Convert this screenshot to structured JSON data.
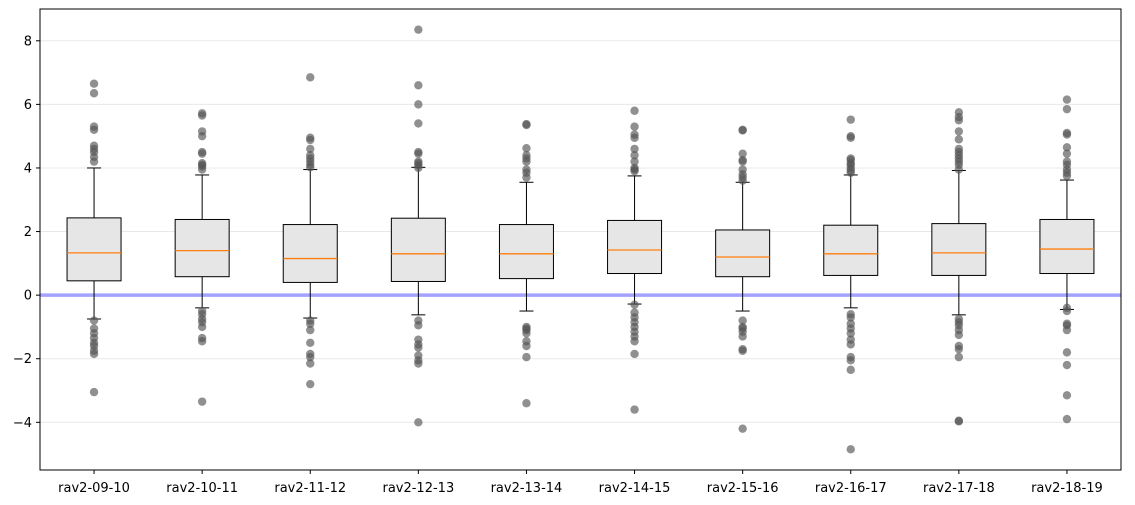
{
  "chart_data": {
    "type": "boxplot",
    "title": "",
    "xlabel": "",
    "ylabel": "",
    "ylim": [
      -5.5,
      9.0
    ],
    "yticks": [
      -4,
      -2,
      0,
      2,
      4,
      6,
      8
    ],
    "ytick_labels": [
      "−4",
      "−2",
      "0",
      "2",
      "4",
      "6",
      "8"
    ],
    "grid": "horizontal",
    "reference_line": {
      "y": 0,
      "color": "#a3a3ff"
    },
    "colors": {
      "box_fill": "#e6e6e6",
      "median": "#ff7f0e",
      "outlier": "#555555",
      "edge": "#000000"
    },
    "categories": [
      "rav2-09-10",
      "rav2-10-11",
      "rav2-11-12",
      "rav2-12-13",
      "rav2-13-14",
      "rav2-14-15",
      "rav2-15-16",
      "rav2-16-17",
      "rav2-17-18",
      "rav2-18-19"
    ],
    "boxes": [
      {
        "whisker_low": -0.75,
        "q1": 0.45,
        "median": 1.33,
        "q3": 2.43,
        "whisker_high": 4.0,
        "outliers": [
          6.65,
          6.35,
          5.3,
          5.2,
          4.7,
          4.6,
          4.5,
          4.35,
          4.2,
          -0.8,
          -1.05,
          -1.2,
          -1.35,
          -1.5,
          -1.6,
          -1.75,
          -1.85,
          -3.05
        ]
      },
      {
        "whisker_low": -0.4,
        "q1": 0.58,
        "median": 1.4,
        "q3": 2.38,
        "whisker_high": 3.78,
        "outliers": [
          5.72,
          5.65,
          5.15,
          5.0,
          4.5,
          4.45,
          4.15,
          4.1,
          4.05,
          3.95,
          -0.5,
          -0.6,
          -0.75,
          -0.85,
          -1.0,
          -1.35,
          -1.45,
          -3.35
        ]
      },
      {
        "whisker_low": -0.72,
        "q1": 0.4,
        "median": 1.15,
        "q3": 2.22,
        "whisker_high": 3.95,
        "outliers": [
          6.85,
          4.95,
          4.88,
          4.6,
          4.4,
          4.3,
          4.2,
          4.1,
          4.02,
          -0.8,
          -0.9,
          -1.1,
          -1.5,
          -1.85,
          -1.95,
          -2.15,
          -2.8
        ]
      },
      {
        "whisker_low": -0.62,
        "q1": 0.43,
        "median": 1.3,
        "q3": 2.42,
        "whisker_high": 4.02,
        "outliers": [
          8.35,
          6.6,
          6.0,
          5.4,
          4.5,
          4.45,
          4.2,
          4.15,
          4.08,
          4.0,
          -0.8,
          -0.95,
          -1.4,
          -1.55,
          -1.65,
          -1.9,
          -2.05,
          -2.15,
          -4.0
        ]
      },
      {
        "whisker_low": -0.5,
        "q1": 0.52,
        "median": 1.3,
        "q3": 2.22,
        "whisker_high": 3.55,
        "outliers": [
          5.38,
          5.35,
          4.62,
          4.4,
          4.3,
          4.2,
          3.95,
          3.85,
          3.7,
          -1.0,
          -1.05,
          -1.1,
          -1.2,
          -1.45,
          -1.6,
          -1.95,
          -3.4
        ]
      },
      {
        "whisker_low": -0.28,
        "q1": 0.68,
        "median": 1.42,
        "q3": 2.35,
        "whisker_high": 3.75,
        "outliers": [
          5.8,
          5.3,
          5.05,
          4.95,
          4.6,
          4.4,
          4.2,
          4.0,
          3.95,
          3.9,
          -0.3,
          -0.55,
          -0.7,
          -0.85,
          -1.0,
          -1.15,
          -1.3,
          -1.45,
          -1.85,
          -3.6
        ]
      },
      {
        "whisker_low": -0.5,
        "q1": 0.58,
        "median": 1.2,
        "q3": 2.05,
        "whisker_high": 3.55,
        "outliers": [
          5.2,
          5.18,
          4.45,
          4.25,
          4.2,
          3.95,
          3.8,
          3.7,
          3.6,
          -0.8,
          -1.0,
          -1.05,
          -1.15,
          -1.3,
          -1.7,
          -1.75,
          -4.2
        ]
      },
      {
        "whisker_low": -0.4,
        "q1": 0.62,
        "median": 1.3,
        "q3": 2.2,
        "whisker_high": 3.78,
        "outliers": [
          5.52,
          5.0,
          4.95,
          4.3,
          4.25,
          4.15,
          4.1,
          4.0,
          3.92,
          3.85,
          -0.6,
          -0.7,
          -0.9,
          -1.05,
          -1.2,
          -1.4,
          -1.55,
          -1.95,
          -2.05,
          -2.35,
          -4.85
        ]
      },
      {
        "whisker_low": -0.62,
        "q1": 0.62,
        "median": 1.33,
        "q3": 2.25,
        "whisker_high": 3.92,
        "outliers": [
          5.75,
          5.6,
          5.5,
          5.15,
          4.9,
          4.6,
          4.5,
          4.4,
          4.3,
          4.2,
          4.1,
          3.95,
          -0.75,
          -0.85,
          -0.95,
          -1.1,
          -1.25,
          -1.6,
          -1.7,
          -1.95,
          -3.95,
          -3.97
        ]
      },
      {
        "whisker_low": -0.45,
        "q1": 0.68,
        "median": 1.45,
        "q3": 2.38,
        "whisker_high": 3.62,
        "outliers": [
          6.15,
          5.85,
          5.1,
          5.05,
          4.65,
          4.45,
          4.2,
          4.1,
          3.95,
          3.85,
          3.75,
          -0.4,
          -0.5,
          -0.9,
          -0.95,
          -1.1,
          -1.8,
          -2.2,
          -3.15,
          -3.9
        ]
      }
    ]
  }
}
